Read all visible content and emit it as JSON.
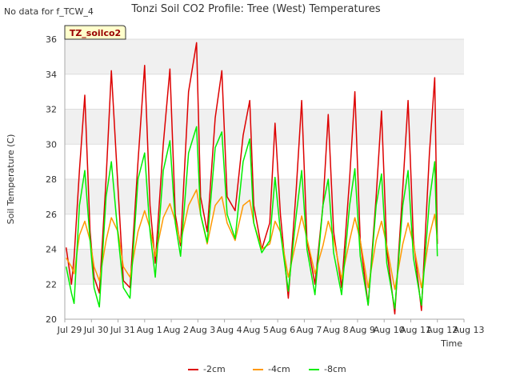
{
  "header": {
    "title": "Tonzi Soil CO2 Profile: Tree (West) Temperatures",
    "nodata_note": "No data for f_TCW_4",
    "badge": "TZ_soilco2"
  },
  "chart_data": {
    "type": "line",
    "title": "Tonzi Soil CO2 Profile: Tree (West) Temperatures",
    "xlabel": "Time",
    "ylabel": "Soil Temperature (C)",
    "xlim": [
      0,
      15
    ],
    "ylim": [
      20,
      36
    ],
    "yticks": [
      20,
      22,
      24,
      26,
      28,
      30,
      32,
      34,
      36
    ],
    "xticks": [
      {
        "value": 0,
        "label": "Jul 29"
      },
      {
        "value": 1,
        "label": "Jul 30"
      },
      {
        "value": 2,
        "label": "Jul 31"
      },
      {
        "value": 3,
        "label": "Aug 1"
      },
      {
        "value": 4,
        "label": "Aug 2"
      },
      {
        "value": 5,
        "label": "Aug 3"
      },
      {
        "value": 6,
        "label": "Aug 4"
      },
      {
        "value": 7,
        "label": "Aug 5"
      },
      {
        "value": 8,
        "label": "Aug 6"
      },
      {
        "value": 9,
        "label": "Aug 7"
      },
      {
        "value": 10,
        "label": "Aug 8"
      },
      {
        "value": 11,
        "label": "Aug 9"
      },
      {
        "value": 12,
        "label": "Aug 10"
      },
      {
        "value": 13,
        "label": "Aug 11"
      },
      {
        "value": 14,
        "label": "Aug 12"
      },
      {
        "value": 15,
        "label": "Aug 13"
      }
    ],
    "grid": true,
    "legend_position": "bottom",
    "series": [
      {
        "name": "-2cm",
        "color": "#dd0000",
        "x": [
          0.05,
          0.25,
          0.35,
          0.55,
          0.75,
          0.95,
          1.1,
          1.3,
          1.55,
          1.75,
          2.0,
          2.2,
          2.45,
          2.75,
          3.0,
          3.2,
          3.4,
          3.7,
          3.95,
          4.15,
          4.35,
          4.65,
          4.95,
          5.1,
          5.35,
          5.65,
          5.9,
          6.1,
          6.4,
          6.7,
          6.95,
          7.1,
          7.4,
          7.7,
          7.9,
          8.1,
          8.4,
          8.7,
          8.9,
          9.1,
          9.4,
          9.7,
          9.9,
          10.1,
          10.4,
          10.7,
          10.9,
          11.1,
          11.4,
          11.7,
          11.9,
          12.1,
          12.4,
          12.7,
          12.9,
          13.1,
          13.4,
          13.7,
          13.9,
          14.0
        ],
        "values": [
          24.1,
          22.0,
          23.5,
          28.5,
          32.8,
          25.0,
          22.4,
          21.5,
          28.0,
          34.2,
          27.5,
          22.2,
          21.8,
          29.0,
          34.5,
          26.5,
          23.2,
          30.0,
          34.3,
          26.0,
          24.2,
          33.0,
          35.8,
          27.0,
          25.0,
          31.5,
          34.2,
          27.0,
          26.2,
          30.5,
          32.5,
          26.5,
          24.0,
          25.5,
          31.2,
          26.0,
          21.2,
          27.5,
          32.5,
          24.5,
          22.0,
          26.5,
          31.7,
          25.0,
          21.8,
          28.0,
          33.0,
          24.5,
          20.8,
          27.0,
          31.9,
          24.0,
          20.3,
          27.5,
          32.5,
          24.5,
          20.5,
          29.5,
          33.8,
          24.3
        ]
      },
      {
        "name": "-4cm",
        "color": "#ff9900",
        "x": [
          0.05,
          0.25,
          0.35,
          0.55,
          0.75,
          0.95,
          1.1,
          1.3,
          1.55,
          1.75,
          2.0,
          2.2,
          2.45,
          2.75,
          3.0,
          3.2,
          3.4,
          3.7,
          3.95,
          4.15,
          4.35,
          4.65,
          4.95,
          5.1,
          5.35,
          5.65,
          5.9,
          6.1,
          6.4,
          6.7,
          6.95,
          7.1,
          7.4,
          7.7,
          7.9,
          8.1,
          8.4,
          8.7,
          8.9,
          9.1,
          9.4,
          9.7,
          9.9,
          10.1,
          10.4,
          10.7,
          10.9,
          11.1,
          11.4,
          11.7,
          11.9,
          12.1,
          12.4,
          12.7,
          12.9,
          13.1,
          13.4,
          13.7,
          13.9,
          14.0
        ],
        "values": [
          23.5,
          23.0,
          22.6,
          24.8,
          25.6,
          24.5,
          23.0,
          22.2,
          24.5,
          25.8,
          25.0,
          23.0,
          22.4,
          25.0,
          26.2,
          25.2,
          23.6,
          25.8,
          26.6,
          25.6,
          24.4,
          26.5,
          27.4,
          26.0,
          24.3,
          26.5,
          27.0,
          25.5,
          24.5,
          26.5,
          26.8,
          25.5,
          24.0,
          24.3,
          25.6,
          25.0,
          22.4,
          24.5,
          25.9,
          24.6,
          22.6,
          24.2,
          25.6,
          24.6,
          22.3,
          24.5,
          25.8,
          24.5,
          21.8,
          24.5,
          25.6,
          24.2,
          21.7,
          24.3,
          25.5,
          24.3,
          21.8,
          24.8,
          26.0,
          24.6
        ]
      },
      {
        "name": "-8cm",
        "color": "#00ee00",
        "x": [
          0.05,
          0.25,
          0.35,
          0.55,
          0.75,
          0.95,
          1.1,
          1.3,
          1.55,
          1.75,
          2.0,
          2.2,
          2.45,
          2.75,
          3.0,
          3.2,
          3.4,
          3.7,
          3.95,
          4.15,
          4.35,
          4.65,
          4.95,
          5.1,
          5.35,
          5.65,
          5.9,
          6.1,
          6.4,
          6.7,
          6.95,
          7.1,
          7.4,
          7.7,
          7.9,
          8.1,
          8.4,
          8.7,
          8.9,
          9.1,
          9.4,
          9.7,
          9.9,
          10.1,
          10.4,
          10.7,
          10.9,
          11.1,
          11.4,
          11.7,
          11.9,
          12.1,
          12.4,
          12.7,
          12.9,
          13.1,
          13.4,
          13.7,
          13.9,
          14.0
        ],
        "values": [
          23.0,
          21.5,
          20.9,
          26.5,
          28.5,
          24.5,
          21.8,
          20.7,
          27.0,
          29.0,
          24.8,
          21.8,
          21.2,
          28.0,
          29.5,
          25.0,
          22.4,
          28.5,
          30.2,
          25.5,
          23.6,
          29.5,
          31.0,
          26.0,
          24.4,
          29.8,
          30.7,
          26.0,
          24.6,
          29.0,
          30.3,
          25.5,
          23.8,
          24.5,
          28.1,
          25.0,
          21.6,
          26.0,
          28.5,
          24.0,
          21.4,
          26.5,
          28.0,
          23.8,
          21.4,
          26.5,
          28.6,
          23.6,
          20.8,
          26.5,
          28.3,
          23.2,
          20.6,
          26.5,
          28.5,
          23.5,
          20.8,
          26.8,
          29.0,
          23.6
        ]
      }
    ]
  }
}
